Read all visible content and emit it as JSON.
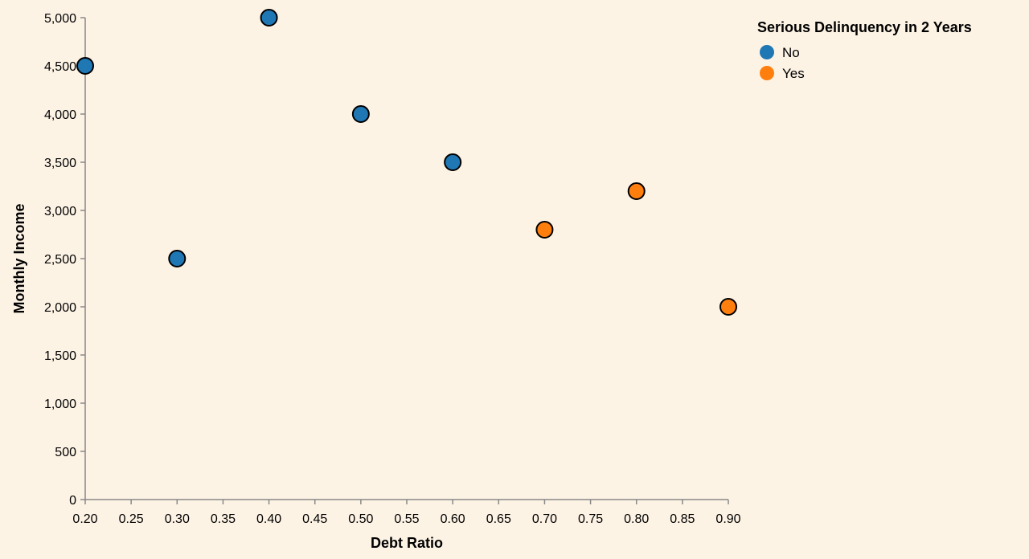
{
  "chart_data": {
    "type": "scatter",
    "xlabel": "Debt Ratio",
    "ylabel": "Monthly Income",
    "xlim": [
      0.2,
      0.9
    ],
    "ylim": [
      0,
      5000
    ],
    "x_ticks": [
      "0.20",
      "0.25",
      "0.30",
      "0.35",
      "0.40",
      "0.45",
      "0.50",
      "0.55",
      "0.60",
      "0.65",
      "0.70",
      "0.75",
      "0.80",
      "0.85",
      "0.90"
    ],
    "y_ticks": [
      "0",
      "500",
      "1,000",
      "1,500",
      "2,000",
      "2,500",
      "3,000",
      "3,500",
      "4,000",
      "4,500",
      "5,000"
    ],
    "grid": false,
    "legend": {
      "title": "Serious Delinquency in 2 Years",
      "placement": "top-right",
      "entries": [
        {
          "label": "No",
          "color": "#1f77b4"
        },
        {
          "label": "Yes",
          "color": "#ff7f0e"
        }
      ]
    },
    "series": [
      {
        "name": "No",
        "color": "#1f77b4",
        "points": [
          {
            "x": 0.2,
            "y": 4500
          },
          {
            "x": 0.3,
            "y": 2500
          },
          {
            "x": 0.4,
            "y": 5000
          },
          {
            "x": 0.5,
            "y": 4000
          },
          {
            "x": 0.6,
            "y": 3500
          }
        ]
      },
      {
        "name": "Yes",
        "color": "#ff7f0e",
        "points": [
          {
            "x": 0.7,
            "y": 2800
          },
          {
            "x": 0.8,
            "y": 3200
          },
          {
            "x": 0.9,
            "y": 2000
          }
        ]
      }
    ]
  }
}
